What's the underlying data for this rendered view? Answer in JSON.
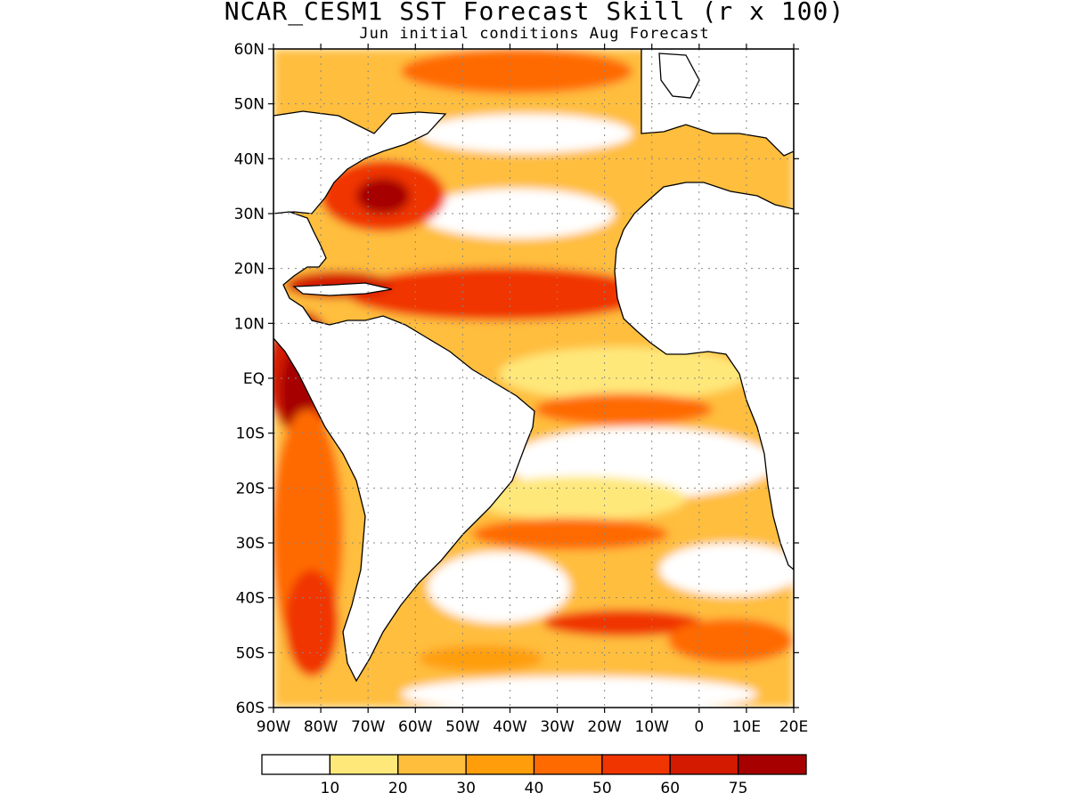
{
  "title": "NCAR_CESM1 SST Forecast Skill (r x 100)",
  "subtitle": "Jun initial conditions  Aug Forecast",
  "map": {
    "lon_range": [
      -90,
      20
    ],
    "lat_range": [
      -60,
      60
    ],
    "lat_labels": [
      "60N",
      "50N",
      "40N",
      "30N",
      "20N",
      "10N",
      "EQ",
      "10S",
      "20S",
      "30S",
      "40S",
      "50S",
      "60S"
    ],
    "lon_labels": [
      "90W",
      "80W",
      "70W",
      "60W",
      "50W",
      "40W",
      "30W",
      "20W",
      "10W",
      "0",
      "10E",
      "20E"
    ],
    "grid": true
  },
  "colorbar": {
    "colors": [
      "#ffffff",
      "#ffe87a",
      "#ffbe3c",
      "#ff9e0a",
      "#ff6a00",
      "#f03500",
      "#d41a00",
      "#a60000"
    ],
    "labels": [
      "10",
      "20",
      "30",
      "40",
      "50",
      "60",
      "75"
    ]
  }
}
